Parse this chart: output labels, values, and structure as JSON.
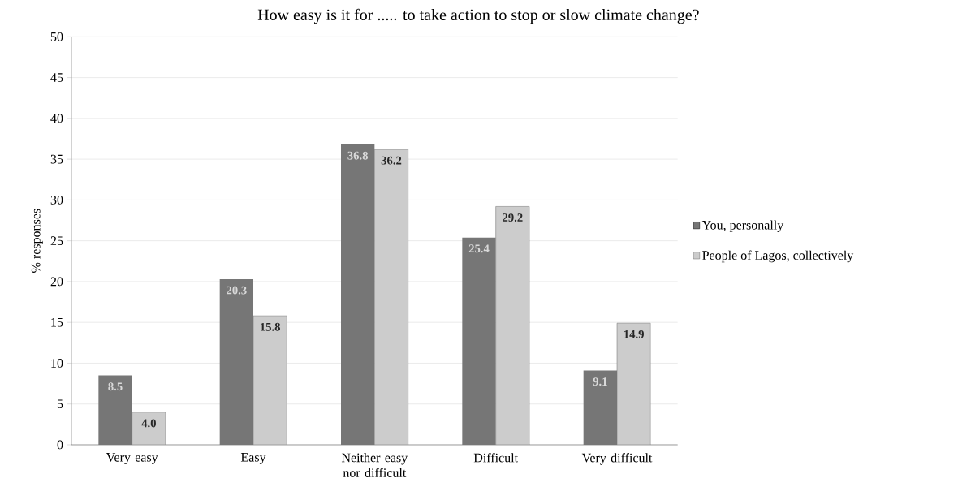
{
  "chart_data": {
    "type": "bar",
    "title": "How easy is it for ..... to take action to stop or slow climate change?",
    "ylabel": "% responses",
    "categories": [
      "Very easy",
      "Easy",
      "Neither easy nor difficult",
      "Difficult",
      "Very difficult"
    ],
    "series": [
      {
        "name": "You, personally",
        "color": "#767676",
        "values": [
          8.5,
          20.3,
          36.8,
          25.4,
          9.1
        ],
        "value_labels": [
          "8.5",
          "20.3",
          "36.8",
          "25.4",
          "9.1"
        ]
      },
      {
        "name": "People of Lagos, collectively",
        "color": "#cccccc",
        "values": [
          4.0,
          15.8,
          36.2,
          29.2,
          14.9
        ],
        "value_labels": [
          "4.0",
          "15.8",
          "36.2",
          "29.2",
          "14.9"
        ]
      }
    ],
    "ylim": [
      0,
      50
    ],
    "yticks": [
      0,
      5,
      10,
      15,
      20,
      25,
      30,
      35,
      40,
      45,
      50
    ],
    "grid": "y",
    "legend": "right"
  }
}
